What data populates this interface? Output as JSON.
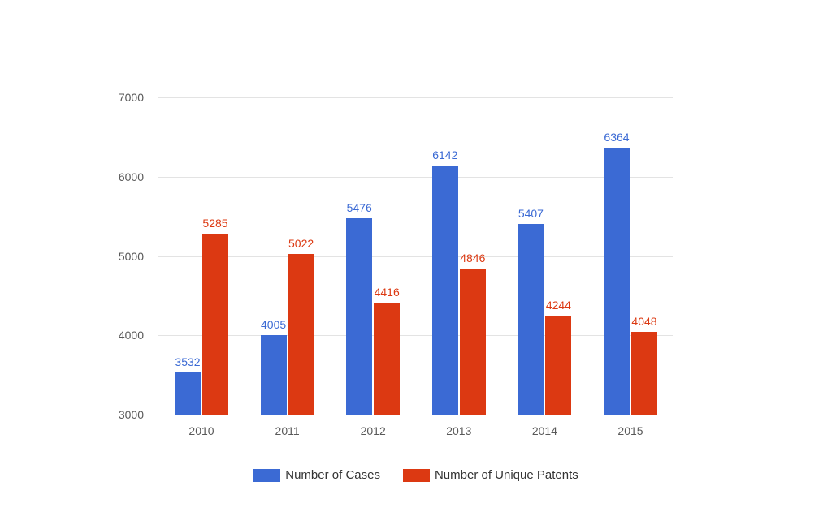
{
  "chart_data": {
    "type": "bar",
    "categories": [
      "2010",
      "2011",
      "2012",
      "2013",
      "2014",
      "2015"
    ],
    "series": [
      {
        "name": "Number of Cases",
        "color": "#3b6ad4",
        "values": [
          3532,
          4005,
          5476,
          6142,
          5407,
          6364
        ]
      },
      {
        "name": "Number of Unique Patents",
        "color": "#dc3912",
        "values": [
          5285,
          5022,
          4416,
          4846,
          4244,
          4048
        ]
      }
    ],
    "title": "",
    "xlabel": "",
    "ylabel": "",
    "ylim": [
      3000,
      7000
    ],
    "yticks": [
      3000,
      4000,
      5000,
      6000,
      7000
    ],
    "grid": true,
    "legend_position": "bottom",
    "value_labels": true
  },
  "colors": {
    "background": "#ffffff",
    "gridline": "#e3e3e3",
    "baseline": "#c9c9c9",
    "axis_text": "#595959",
    "legend_text": "#333333"
  }
}
